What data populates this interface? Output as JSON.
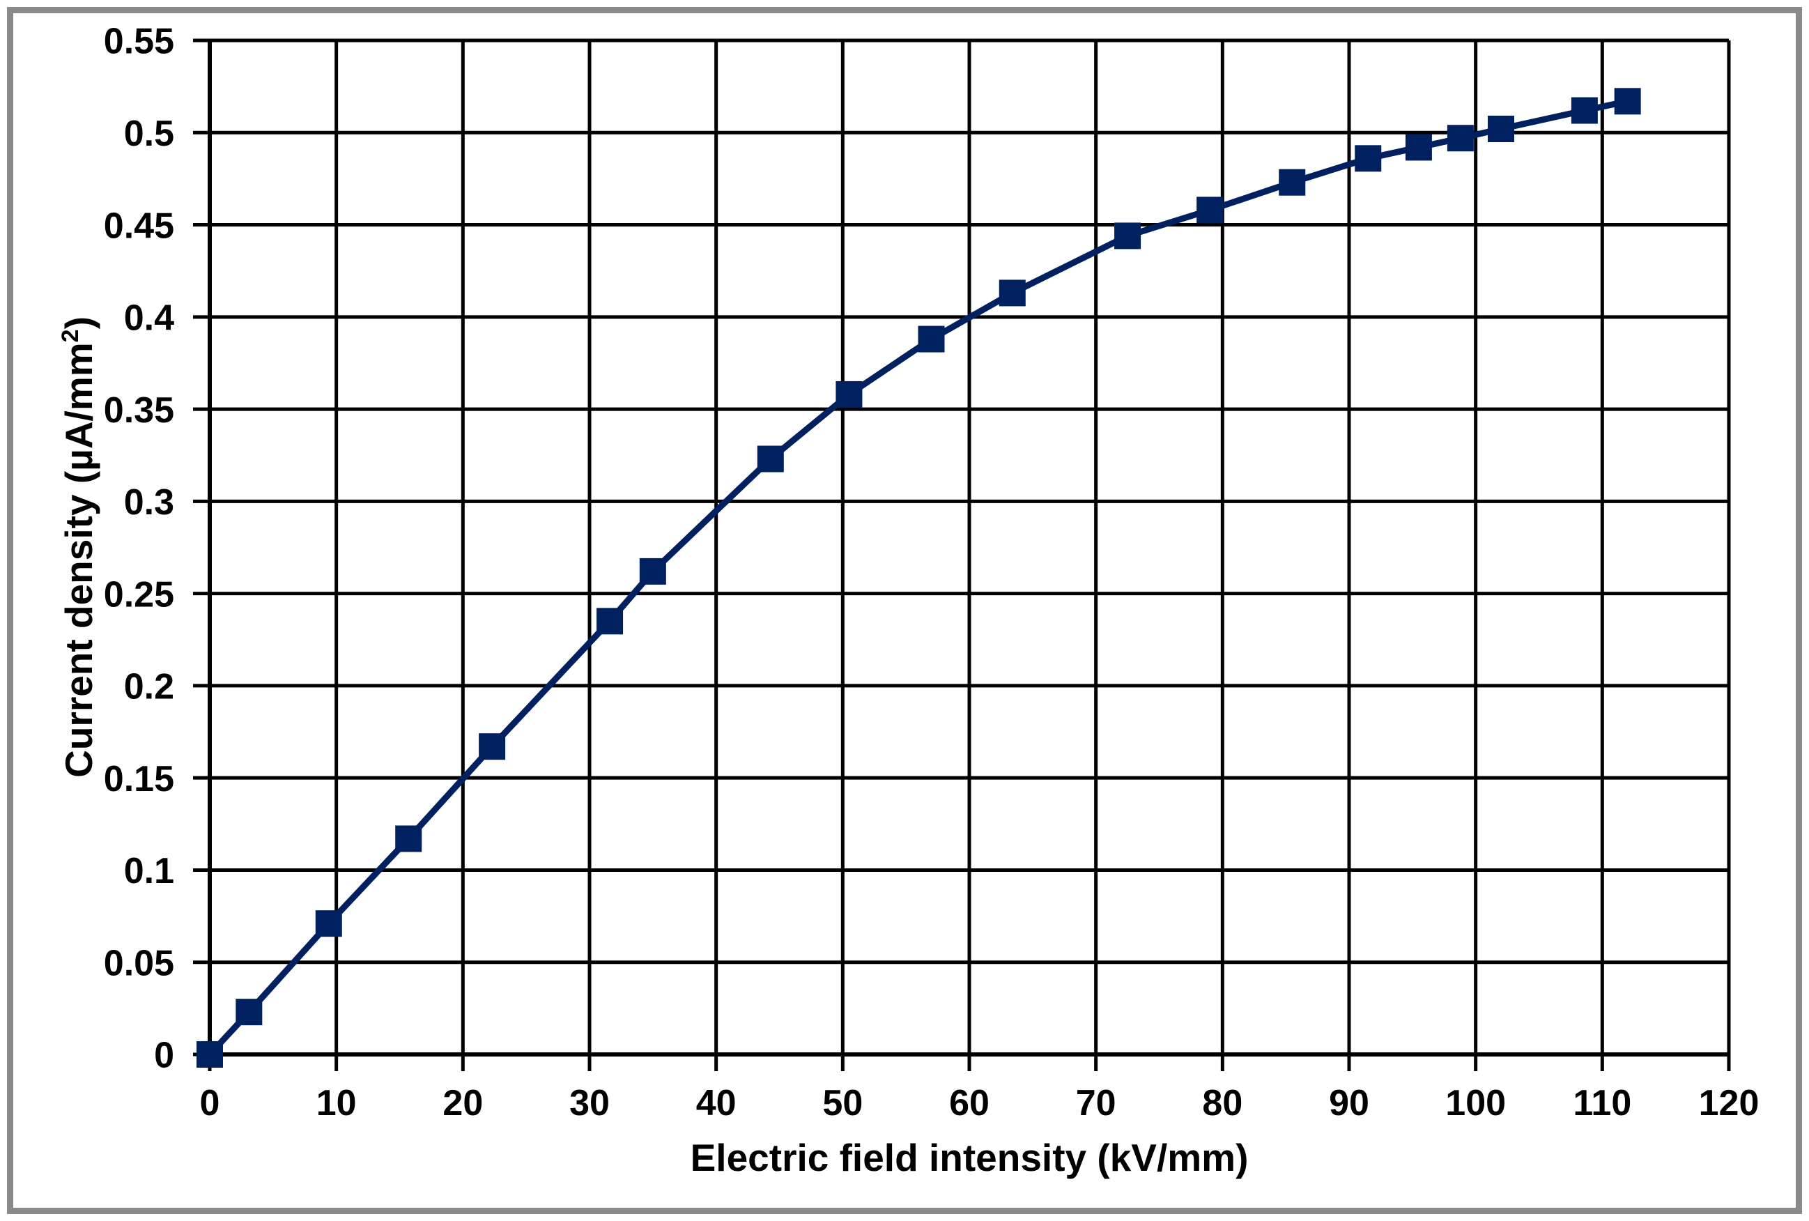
{
  "chart_data": {
    "type": "line",
    "xlabel": "Electric field intensity (kV/mm)",
    "ylabel": "Current density (µA/mm²)",
    "ylabel_main": "Current density (µA/mm",
    "ylabel_sup": "2",
    "ylabel_close": ")",
    "x": [
      0,
      3.1,
      9.4,
      15.7,
      22.3,
      31.6,
      35.0,
      44.3,
      50.5,
      57.0,
      63.4,
      72.5,
      79.0,
      85.5,
      91.5,
      95.5,
      98.8,
      102.0,
      108.6,
      112.0
    ],
    "y": [
      0,
      0.023,
      0.071,
      0.117,
      0.167,
      0.235,
      0.262,
      0.323,
      0.358,
      0.388,
      0.413,
      0.444,
      0.458,
      0.473,
      0.486,
      0.492,
      0.497,
      0.502,
      0.512,
      0.517
    ],
    "xlim": [
      0,
      120
    ],
    "ylim": [
      0,
      0.55
    ],
    "x_ticks": [
      0,
      10,
      20,
      30,
      40,
      50,
      60,
      70,
      80,
      90,
      100,
      110,
      120
    ],
    "y_ticks": [
      0,
      0.05,
      0.1,
      0.15,
      0.2,
      0.25,
      0.3,
      0.35,
      0.4,
      0.45,
      0.5,
      0.55
    ],
    "x_tick_labels": [
      "0",
      "10",
      "20",
      "30",
      "40",
      "50",
      "60",
      "70",
      "80",
      "90",
      "100",
      "110",
      "120"
    ],
    "y_tick_labels": [
      "0",
      "0.05",
      "0.1",
      "0.15",
      "0.2",
      "0.25",
      "0.3",
      "0.35",
      "0.4",
      "0.45",
      "0.5",
      "0.55"
    ],
    "grid": true,
    "legend_position": "none",
    "marker": "square",
    "marker_size": 38,
    "line_width": 9,
    "colors": {
      "line": "#002060",
      "marker": "#002060",
      "grid": "#000000",
      "axis": "#000000",
      "text": "#000000",
      "frame_border": "#8a8a8a",
      "background": "#ffffff"
    }
  }
}
